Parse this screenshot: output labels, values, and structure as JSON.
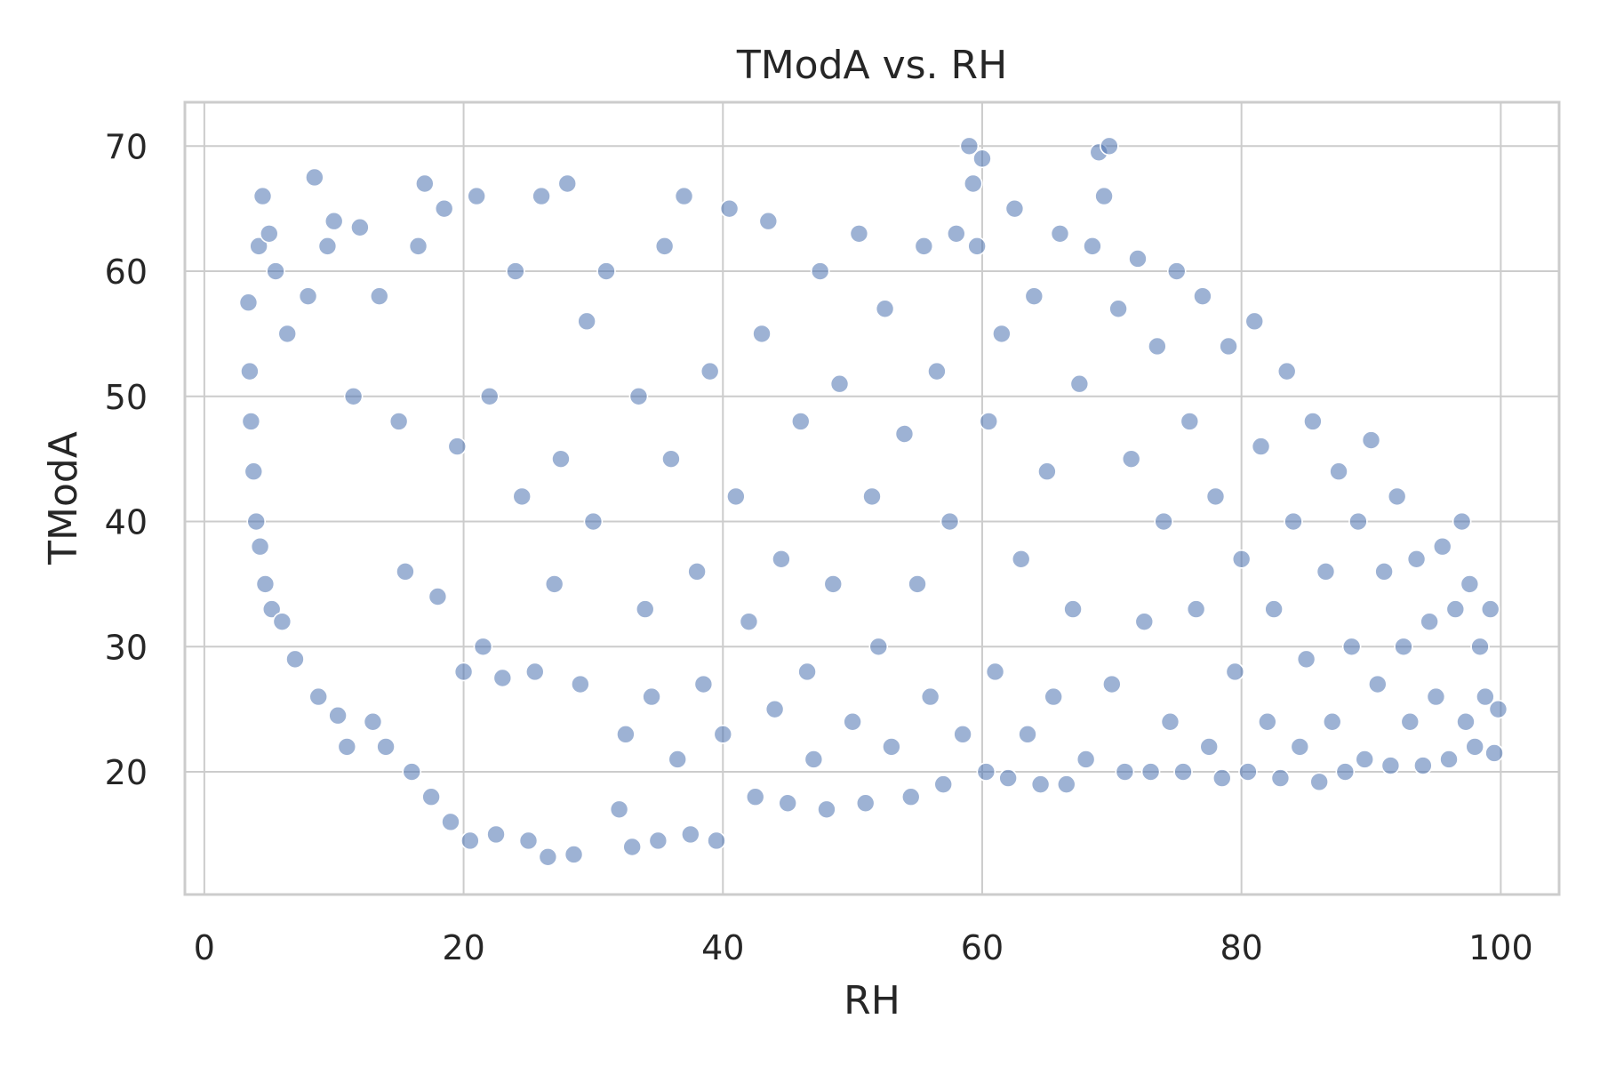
{
  "chart_data": {
    "type": "scatter",
    "title": "TModA vs. RH",
    "xlabel": "RH",
    "ylabel": "TModA",
    "xlim": [
      -1.5,
      104.5
    ],
    "ylim": [
      10.2,
      73.5
    ],
    "xticks": [
      0,
      20,
      40,
      60,
      80,
      100
    ],
    "yticks": [
      20,
      30,
      40,
      50,
      60,
      70
    ],
    "grid": true,
    "legend": "none",
    "colors": {
      "point_fill": "#4c72b0",
      "point_stroke": "#ffffff",
      "grid": "#cccccc",
      "axes_edge": "#cccccc",
      "text": "#262626"
    },
    "series": [
      {
        "color": "#4c72b0",
        "points": [
          [
            3.4,
            57.5
          ],
          [
            3.5,
            52
          ],
          [
            3.6,
            48
          ],
          [
            3.8,
            44
          ],
          [
            4.0,
            40
          ],
          [
            4.2,
            62
          ],
          [
            4.3,
            38
          ],
          [
            4.5,
            66
          ],
          [
            4.7,
            35
          ],
          [
            5.0,
            63
          ],
          [
            5.2,
            33
          ],
          [
            5.5,
            60
          ],
          [
            6.0,
            32
          ],
          [
            6.4,
            55
          ],
          [
            7.0,
            29
          ],
          [
            8.0,
            58
          ],
          [
            8.5,
            67.5
          ],
          [
            8.8,
            26
          ],
          [
            9.5,
            62
          ],
          [
            10.0,
            64
          ],
          [
            10.3,
            24.5
          ],
          [
            11.0,
            22
          ],
          [
            11.5,
            50
          ],
          [
            12.0,
            63.5
          ],
          [
            13.0,
            24
          ],
          [
            13.5,
            58
          ],
          [
            14.0,
            22
          ],
          [
            15.0,
            48
          ],
          [
            15.5,
            36
          ],
          [
            16.0,
            20
          ],
          [
            16.5,
            62
          ],
          [
            17.0,
            67
          ],
          [
            17.5,
            18
          ],
          [
            18.0,
            34
          ],
          [
            18.5,
            65
          ],
          [
            19.0,
            16
          ],
          [
            19.5,
            46
          ],
          [
            20.0,
            28
          ],
          [
            20.5,
            14.5
          ],
          [
            21.0,
            66
          ],
          [
            21.5,
            30
          ],
          [
            22.0,
            50
          ],
          [
            22.5,
            15
          ],
          [
            23.0,
            27.5
          ],
          [
            24.0,
            60
          ],
          [
            24.5,
            42
          ],
          [
            25.0,
            14.5
          ],
          [
            25.5,
            28
          ],
          [
            26.0,
            66
          ],
          [
            26.5,
            13.2
          ],
          [
            27.0,
            35
          ],
          [
            27.5,
            45
          ],
          [
            28.0,
            67
          ],
          [
            28.5,
            13.4
          ],
          [
            29.0,
            27
          ],
          [
            29.5,
            56
          ],
          [
            30.0,
            40
          ],
          [
            31.0,
            60
          ],
          [
            32.0,
            17
          ],
          [
            32.5,
            23
          ],
          [
            33.0,
            14
          ],
          [
            33.5,
            50
          ],
          [
            34.0,
            33
          ],
          [
            34.5,
            26
          ],
          [
            35.0,
            14.5
          ],
          [
            35.5,
            62
          ],
          [
            36.0,
            45
          ],
          [
            36.5,
            21
          ],
          [
            37.0,
            66
          ],
          [
            37.5,
            15
          ],
          [
            38.0,
            36
          ],
          [
            38.5,
            27
          ],
          [
            39.0,
            52
          ],
          [
            39.5,
            14.5
          ],
          [
            40.0,
            23
          ],
          [
            40.5,
            65
          ],
          [
            41.0,
            42
          ],
          [
            42.0,
            32
          ],
          [
            42.5,
            18
          ],
          [
            43.0,
            55
          ],
          [
            43.5,
            64
          ],
          [
            44.0,
            25
          ],
          [
            44.5,
            37
          ],
          [
            45.0,
            17.5
          ],
          [
            46.0,
            48
          ],
          [
            46.5,
            28
          ],
          [
            47.0,
            21
          ],
          [
            47.5,
            60
          ],
          [
            48.0,
            17
          ],
          [
            48.5,
            35
          ],
          [
            49.0,
            51
          ],
          [
            50.0,
            24
          ],
          [
            50.5,
            63
          ],
          [
            51.0,
            17.5
          ],
          [
            51.5,
            42
          ],
          [
            52.0,
            30
          ],
          [
            52.5,
            57
          ],
          [
            53.0,
            22
          ],
          [
            54.0,
            47
          ],
          [
            54.5,
            18
          ],
          [
            55.0,
            35
          ],
          [
            55.5,
            62
          ],
          [
            56.0,
            26
          ],
          [
            56.5,
            52
          ],
          [
            57.0,
            19
          ],
          [
            57.5,
            40
          ],
          [
            58.0,
            63
          ],
          [
            58.5,
            23
          ],
          [
            59.0,
            70
          ],
          [
            59.3,
            67
          ],
          [
            59.6,
            62
          ],
          [
            60.0,
            69
          ],
          [
            60.3,
            20
          ],
          [
            60.5,
            48
          ],
          [
            61.0,
            28
          ],
          [
            61.5,
            55
          ],
          [
            62.0,
            19.5
          ],
          [
            62.5,
            65
          ],
          [
            63.0,
            37
          ],
          [
            63.5,
            23
          ],
          [
            64.0,
            58
          ],
          [
            64.5,
            19
          ],
          [
            65.0,
            44
          ],
          [
            65.5,
            26
          ],
          [
            66.0,
            63
          ],
          [
            66.5,
            19
          ],
          [
            67.0,
            33
          ],
          [
            67.5,
            51
          ],
          [
            68.0,
            21
          ],
          [
            68.5,
            62
          ],
          [
            69.0,
            69.5
          ],
          [
            69.4,
            66
          ],
          [
            69.8,
            70
          ],
          [
            70.0,
            27
          ],
          [
            70.5,
            57
          ],
          [
            71.0,
            20
          ],
          [
            71.5,
            45
          ],
          [
            72.0,
            61
          ],
          [
            72.5,
            32
          ],
          [
            73.0,
            20
          ],
          [
            73.5,
            54
          ],
          [
            74.0,
            40
          ],
          [
            74.5,
            24
          ],
          [
            75.0,
            60
          ],
          [
            75.5,
            20
          ],
          [
            76.0,
            48
          ],
          [
            76.5,
            33
          ],
          [
            77.0,
            58
          ],
          [
            77.5,
            22
          ],
          [
            78.0,
            42
          ],
          [
            78.5,
            19.5
          ],
          [
            79.0,
            54
          ],
          [
            79.5,
            28
          ],
          [
            80.0,
            37
          ],
          [
            80.5,
            20
          ],
          [
            81.0,
            56
          ],
          [
            81.5,
            46
          ],
          [
            82.0,
            24
          ],
          [
            82.5,
            33
          ],
          [
            83.0,
            19.5
          ],
          [
            83.5,
            52
          ],
          [
            84.0,
            40
          ],
          [
            84.5,
            22
          ],
          [
            85.0,
            29
          ],
          [
            85.5,
            48
          ],
          [
            86.0,
            19.2
          ],
          [
            86.5,
            36
          ],
          [
            87.0,
            24
          ],
          [
            87.5,
            44
          ],
          [
            88.0,
            20
          ],
          [
            88.5,
            30
          ],
          [
            89.0,
            40
          ],
          [
            89.5,
            21
          ],
          [
            90.0,
            46.5
          ],
          [
            90.5,
            27
          ],
          [
            91.0,
            36
          ],
          [
            91.5,
            20.5
          ],
          [
            92.0,
            42
          ],
          [
            92.5,
            30
          ],
          [
            93.0,
            24
          ],
          [
            93.5,
            37
          ],
          [
            94.0,
            20.5
          ],
          [
            94.5,
            32
          ],
          [
            95.0,
            26
          ],
          [
            95.5,
            38
          ],
          [
            96.0,
            21
          ],
          [
            96.5,
            33
          ],
          [
            97.0,
            40
          ],
          [
            97.3,
            24
          ],
          [
            97.6,
            35
          ],
          [
            98.0,
            22
          ],
          [
            98.4,
            30
          ],
          [
            98.8,
            26
          ],
          [
            99.2,
            33
          ],
          [
            99.5,
            21.5
          ],
          [
            99.8,
            25
          ]
        ]
      }
    ]
  }
}
